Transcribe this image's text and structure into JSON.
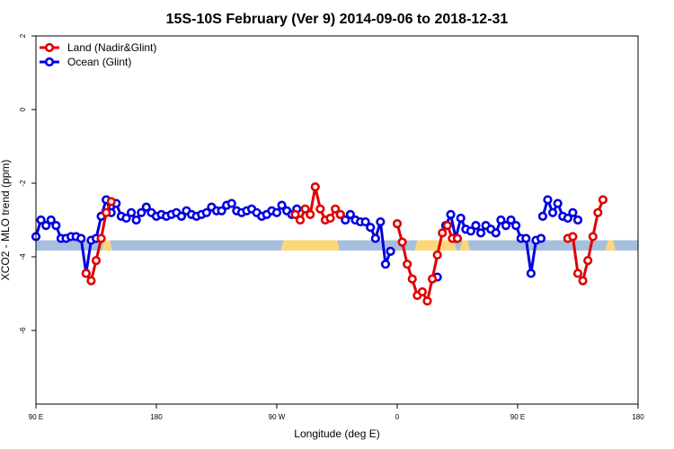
{
  "chart_data": {
    "type": "line",
    "title": "15S-10S February (Ver 9)   2014-09-06 to 2018-12-31",
    "xlabel": "Longitude (deg E)",
    "ylabel": "XCO2 - MLO trend (ppm)",
    "xlim": [
      90,
      450
    ],
    "ylim": [
      -8,
      2
    ],
    "x_ticks": [
      {
        "value": 90,
        "label": "90 E"
      },
      {
        "value": 162,
        "label": "180"
      },
      {
        "value": 234,
        "label": "90 W"
      },
      {
        "value": 306,
        "label": "0"
      },
      {
        "value": 378,
        "label": "90 E"
      },
      {
        "value": 450,
        "label": "180"
      }
    ],
    "y_ticks": [
      {
        "value": 2,
        "label": "2"
      },
      {
        "value": 0,
        "label": "0"
      },
      {
        "value": -2,
        "label": "-2"
      },
      {
        "value": -4,
        "label": "-4"
      },
      {
        "value": -6,
        "label": "-6"
      }
    ],
    "legend_position": "top-left",
    "surface_band": {
      "y_range": [
        -3.83,
        -3.55
      ],
      "ocean_color": "#a6bfdf",
      "land_color": "#fcd77a",
      "land_spans": [
        [
          131,
          134
        ],
        [
          238,
          270
        ],
        [
          318,
          340
        ],
        [
          345,
          348
        ],
        [
          432,
          435
        ]
      ]
    },
    "series": [
      {
        "name": "Land (Nadir&Glint)",
        "color": "#e00000",
        "segments": [
          [
            [
              120,
              -4.45
            ],
            [
              123,
              -4.65
            ],
            [
              126,
              -4.1
            ],
            [
              129,
              -3.5
            ],
            [
              132,
              -2.8
            ],
            [
              135,
              -2.5
            ]
          ],
          [
            [
              245,
              -2.85
            ],
            [
              248,
              -3.0
            ],
            [
              251,
              -2.7
            ],
            [
              254,
              -2.85
            ],
            [
              257,
              -2.1
            ],
            [
              260,
              -2.7
            ],
            [
              263,
              -3.0
            ],
            [
              266,
              -2.95
            ],
            [
              269,
              -2.7
            ],
            [
              272,
              -2.85
            ]
          ],
          [
            [
              306,
              -3.1
            ],
            [
              309,
              -3.6
            ],
            [
              312,
              -4.2
            ],
            [
              315,
              -4.6
            ],
            [
              318,
              -5.05
            ],
            [
              321,
              -4.95
            ],
            [
              324,
              -5.2
            ],
            [
              327,
              -4.6
            ],
            [
              330,
              -3.95
            ],
            [
              333,
              -3.35
            ],
            [
              336,
              -3.15
            ],
            [
              339,
              -3.5
            ],
            [
              342,
              -3.5
            ]
          ],
          [
            [
              408,
              -3.5
            ],
            [
              411,
              -3.45
            ],
            [
              414,
              -4.45
            ],
            [
              417,
              -4.65
            ],
            [
              420,
              -4.1
            ],
            [
              423,
              -3.45
            ],
            [
              426,
              -2.8
            ],
            [
              429,
              -2.45
            ]
          ]
        ]
      },
      {
        "name": "Ocean (Glint)",
        "color": "#0000e0",
        "segments": [
          [
            [
              90,
              -3.45
            ],
            [
              93,
              -3.0
            ],
            [
              96,
              -3.15
            ],
            [
              99,
              -3.0
            ],
            [
              102,
              -3.15
            ],
            [
              105,
              -3.5
            ],
            [
              108,
              -3.5
            ],
            [
              111,
              -3.45
            ],
            [
              114,
              -3.45
            ],
            [
              117,
              -3.5
            ],
            [
              120,
              -4.45
            ],
            [
              123,
              -3.55
            ],
            [
              126,
              -3.5
            ],
            [
              129,
              -2.9
            ],
            [
              132,
              -2.45
            ],
            [
              135,
              -2.8
            ],
            [
              138,
              -2.55
            ],
            [
              141,
              -2.9
            ],
            [
              144,
              -2.95
            ],
            [
              147,
              -2.8
            ],
            [
              150,
              -3.0
            ],
            [
              153,
              -2.8
            ],
            [
              156,
              -2.65
            ],
            [
              159,
              -2.8
            ],
            [
              162,
              -2.9
            ],
            [
              165,
              -2.85
            ],
            [
              168,
              -2.9
            ],
            [
              171,
              -2.85
            ],
            [
              174,
              -2.8
            ],
            [
              177,
              -2.9
            ],
            [
              180,
              -2.75
            ],
            [
              183,
              -2.85
            ],
            [
              186,
              -2.9
            ],
            [
              189,
              -2.85
            ],
            [
              192,
              -2.8
            ],
            [
              195,
              -2.65
            ],
            [
              198,
              -2.75
            ],
            [
              201,
              -2.75
            ],
            [
              204,
              -2.6
            ],
            [
              207,
              -2.55
            ],
            [
              210,
              -2.75
            ],
            [
              213,
              -2.8
            ],
            [
              216,
              -2.75
            ],
            [
              219,
              -2.7
            ],
            [
              222,
              -2.8
            ],
            [
              225,
              -2.9
            ],
            [
              228,
              -2.85
            ],
            [
              231,
              -2.75
            ],
            [
              234,
              -2.8
            ],
            [
              237,
              -2.6
            ],
            [
              240,
              -2.75
            ],
            [
              243,
              -2.85
            ],
            [
              246,
              -2.7
            ]
          ],
          [
            [
              272,
              -2.85
            ],
            [
              275,
              -3.0
            ],
            [
              278,
              -2.85
            ],
            [
              281,
              -3.0
            ],
            [
              284,
              -3.05
            ],
            [
              287,
              -3.05
            ],
            [
              290,
              -3.2
            ],
            [
              293,
              -3.5
            ],
            [
              296,
              -3.05
            ],
            [
              299,
              -4.2
            ],
            [
              302,
              -3.85
            ]
          ],
          [
            [
              330,
              -4.55
            ]
          ],
          [
            [
              335,
              -3.15
            ],
            [
              338,
              -2.85
            ],
            [
              341,
              -3.5
            ],
            [
              344,
              -2.95
            ],
            [
              347,
              -3.25
            ],
            [
              350,
              -3.3
            ],
            [
              353,
              -3.15
            ],
            [
              356,
              -3.35
            ],
            [
              359,
              -3.15
            ],
            [
              362,
              -3.25
            ],
            [
              365,
              -3.35
            ],
            [
              368,
              -3.0
            ],
            [
              371,
              -3.15
            ],
            [
              374,
              -3.0
            ],
            [
              377,
              -3.15
            ],
            [
              380,
              -3.5
            ],
            [
              383,
              -3.5
            ],
            [
              386,
              -4.45
            ],
            [
              389,
              -3.55
            ],
            [
              392,
              -3.5
            ]
          ],
          [
            [
              393,
              -2.9
            ],
            [
              396,
              -2.45
            ],
            [
              399,
              -2.8
            ],
            [
              402,
              -2.55
            ],
            [
              405,
              -2.9
            ],
            [
              408,
              -2.95
            ],
            [
              411,
              -2.8
            ],
            [
              414,
              -3.0
            ]
          ]
        ]
      }
    ]
  }
}
